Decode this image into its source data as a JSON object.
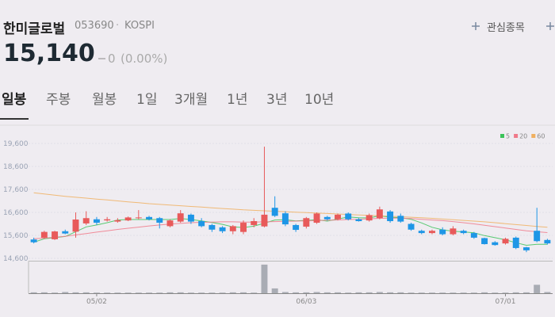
{
  "header": {
    "name": "한미글로벌",
    "code": "053690",
    "separator": "·",
    "market": "KOSPI",
    "watch_label": "관심종목"
  },
  "price": {
    "current": "15,140",
    "change": "0",
    "change_pct": "(0.00%)"
  },
  "tabs": [
    "일봉",
    "주봉",
    "월봉",
    "1일",
    "3개월",
    "1년",
    "3년",
    "10년"
  ],
  "chart_data": {
    "type": "candlestick",
    "categories": [
      null,
      null,
      null,
      null,
      null,
      null,
      "05/02",
      null,
      null,
      null,
      null,
      null,
      null,
      null,
      null,
      null,
      null,
      null,
      null,
      null,
      null,
      null,
      null,
      null,
      null,
      null,
      "06/03",
      null,
      null,
      null,
      null,
      null,
      null,
      null,
      null,
      null,
      null,
      null,
      null,
      null,
      null,
      null,
      null,
      null,
      null,
      "07/01",
      null,
      null,
      null,
      null
    ],
    "open": [
      15420,
      15500,
      15430,
      15780,
      15760,
      16120,
      16300,
      16250,
      16200,
      16250,
      16350,
      16400,
      16350,
      16000,
      16200,
      16500,
      16220,
      16050,
      15950,
      15780,
      15750,
      16050,
      15990,
      16800,
      16560,
      16050,
      15980,
      16150,
      16400,
      16300,
      16550,
      16300,
      16250,
      16350,
      16640,
      16450,
      16100,
      15800,
      15700,
      15850,
      15650,
      15800,
      15700,
      15480,
      15300,
      15250,
      15500,
      15080,
      15800,
      15400
    ],
    "high": [
      15500,
      15800,
      15800,
      15850,
      16600,
      16650,
      16400,
      16400,
      16350,
      16420,
      16700,
      16450,
      16400,
      16300,
      16700,
      16550,
      16350,
      16100,
      16000,
      16050,
      16250,
      16350,
      19460,
      17300,
      16650,
      16100,
      16400,
      16600,
      16450,
      16550,
      16600,
      16350,
      16550,
      16850,
      16700,
      16550,
      16150,
      15850,
      15850,
      15950,
      16000,
      15850,
      15750,
      15500,
      15350,
      15500,
      15550,
      15100,
      16800,
      15450
    ],
    "low": [
      15250,
      15450,
      15400,
      15650,
      15500,
      16050,
      16050,
      16200,
      16150,
      16220,
      16300,
      16250,
      15900,
      15950,
      16150,
      16100,
      15950,
      15750,
      15700,
      15650,
      15650,
      15950,
      15950,
      16400,
      16000,
      15750,
      15900,
      16100,
      16250,
      16250,
      16250,
      16200,
      16200,
      16300,
      16150,
      16150,
      15800,
      15650,
      15650,
      15600,
      15600,
      15650,
      15450,
      15200,
      15150,
      15200,
      15000,
      14870,
      15300,
      15200
    ],
    "close": [
      15300,
      15750,
      15770,
      15680,
      16290,
      16350,
      16150,
      16300,
      16260,
      16380,
      16380,
      16300,
      16150,
      16250,
      16560,
      16200,
      16000,
      15850,
      15780,
      16000,
      16150,
      16220,
      16500,
      16450,
      16080,
      15840,
      16350,
      16550,
      16300,
      16500,
      16300,
      16220,
      16480,
      16730,
      16220,
      16200,
      15850,
      15700,
      15800,
      15650,
      15900,
      15700,
      15500,
      15220,
      15180,
      15450,
      15050,
      14950,
      15350,
      15250
    ],
    "volume": [
      3,
      3,
      2,
      4,
      3,
      3,
      2,
      2,
      2,
      2,
      2,
      2,
      2,
      3,
      3,
      2,
      2,
      2,
      2,
      3,
      3,
      2,
      95,
      16,
      4,
      3,
      3,
      4,
      3,
      3,
      2,
      3,
      3,
      4,
      3,
      3,
      2,
      2,
      2,
      2,
      2,
      2,
      2,
      3,
      2,
      2,
      3,
      3,
      28,
      4
    ],
    "volume_ylim": [
      0,
      100
    ],
    "up_color": "#e85a5a",
    "down_color": "#1e96e6",
    "volume_color": "#a9acb4",
    "ylim": [
      14500,
      20100
    ],
    "yticks": [
      {
        "value": 19600,
        "label": "19,600"
      },
      {
        "value": 18600,
        "label": "18,600"
      },
      {
        "value": 17600,
        "label": "17,600"
      },
      {
        "value": 16600,
        "label": "16,600"
      },
      {
        "value": 15600,
        "label": "15,600"
      },
      {
        "value": 14600,
        "label": "14,600"
      }
    ],
    "grid": true,
    "legend": "top-right",
    "series": [
      {
        "name": "5",
        "color": "#3cc35a",
        "values": [
          15300,
          15450,
          15500,
          15550,
          15760,
          15970,
          16050,
          16150,
          16270,
          16290,
          16290,
          16290,
          16290,
          16290,
          16330,
          16290,
          16230,
          16160,
          16080,
          15970,
          15940,
          16000,
          16130,
          16270,
          16280,
          16230,
          16250,
          16280,
          16220,
          16310,
          16400,
          16370,
          16360,
          16450,
          16390,
          16370,
          16300,
          16140,
          15950,
          15840,
          15780,
          15750,
          15710,
          15590,
          15500,
          15410,
          15280,
          15170,
          15210,
          15210
        ]
      },
      {
        "name": "20",
        "color": "#f07a8a",
        "values": [
          15450,
          15480,
          15520,
          15560,
          15620,
          15680,
          15740,
          15800,
          15860,
          15910,
          15960,
          16010,
          16050,
          16090,
          16120,
          16150,
          16170,
          16180,
          16190,
          16190,
          16180,
          16180,
          16190,
          16200,
          16210,
          16220,
          16230,
          16240,
          16260,
          16270,
          16290,
          16300,
          16320,
          16340,
          16350,
          16350,
          16330,
          16300,
          16270,
          16240,
          16200,
          16150,
          16100,
          16040,
          15980,
          15920,
          15860,
          15800,
          15760,
          15720
        ]
      },
      {
        "name": "60",
        "color": "#f0b060",
        "values": [
          17450,
          17400,
          17350,
          17300,
          17260,
          17220,
          17180,
          17140,
          17100,
          17060,
          17020,
          16980,
          16950,
          16920,
          16890,
          16860,
          16830,
          16800,
          16770,
          16740,
          16710,
          16690,
          16670,
          16650,
          16630,
          16610,
          16590,
          16570,
          16550,
          16530,
          16510,
          16490,
          16470,
          16450,
          16430,
          16410,
          16390,
          16370,
          16340,
          16310,
          16280,
          16250,
          16220,
          16190,
          16150,
          16110,
          16070,
          16030,
          15990,
          15950
        ]
      }
    ]
  }
}
